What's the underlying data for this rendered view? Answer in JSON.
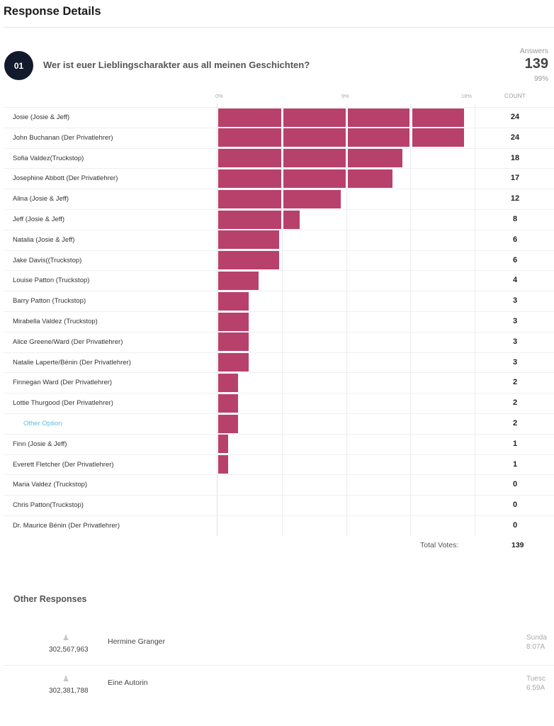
{
  "page": {
    "title": "Response Details"
  },
  "question": {
    "number": "01",
    "text": "Wer ist euer Lieblingscharakter aus all meinen Geschichten?",
    "answers_label": "Answers",
    "answers_count": "139",
    "answers_pct": "99%"
  },
  "chart_data": {
    "type": "bar",
    "orientation": "horizontal",
    "title": "Wer ist euer Lieblingscharakter aus all meinen Geschichten?",
    "xlabel": "",
    "ylabel": "",
    "xlim_percent": [
      0,
      18
    ],
    "x_ticks": [
      "0%",
      "9%",
      "18%"
    ],
    "count_header": "COUNT",
    "bar_color": "#b8416b",
    "total_votes": 139,
    "categories": [
      "Josie (Josie & Jeff)",
      "John Buchanan (Der Privatlehrer)",
      "Sofia Valdez(Truckstop)",
      "Josephine Abbott (Der Privatlehrer)",
      "Alina (Josie & Jeff)",
      "Jeff (Josie & Jeff)",
      "Natalia (Josie & Jeff)",
      "Jake Davis((Truckstop)",
      "Louise Patton (Truckstop)",
      "Barry Patton (Truckstop)",
      "Mirabella Valdez (Truckstop)",
      "Alice Greene/Ward (Der Privatlehrer)",
      "Natalie Laperte/Bénin (Der Privatlehrer)",
      "Finnegan Ward (Der Privatlehrer)",
      "Lottie Thurgood (Der Privatlehrer)",
      "Other Option",
      "Finn (Josie & Jeff)",
      "Everett Fletcher (Der Privatlehrer)",
      "Maria Valdez (Truckstop)",
      "Chris Patton(Truckstop)",
      "Dr. Maurice Bénin (Der Privatlehrer)"
    ],
    "values": [
      24,
      24,
      18,
      17,
      12,
      8,
      6,
      6,
      4,
      3,
      3,
      3,
      3,
      2,
      2,
      2,
      1,
      1,
      0,
      0,
      0
    ],
    "other_option_index": 15
  },
  "totals": {
    "label": "Total Votes:",
    "value": "139"
  },
  "other_responses": {
    "title": "Other Responses",
    "icon": "user-icon",
    "items": [
      {
        "id": "302,567,963",
        "name": "Hermine Granger",
        "date_line1": "Sunda",
        "date_line2": "8:07A"
      },
      {
        "id": "302,381,788",
        "name": "Eine Autorin",
        "date_line1": "Tuesc",
        "date_line2": "6:59A"
      }
    ]
  }
}
